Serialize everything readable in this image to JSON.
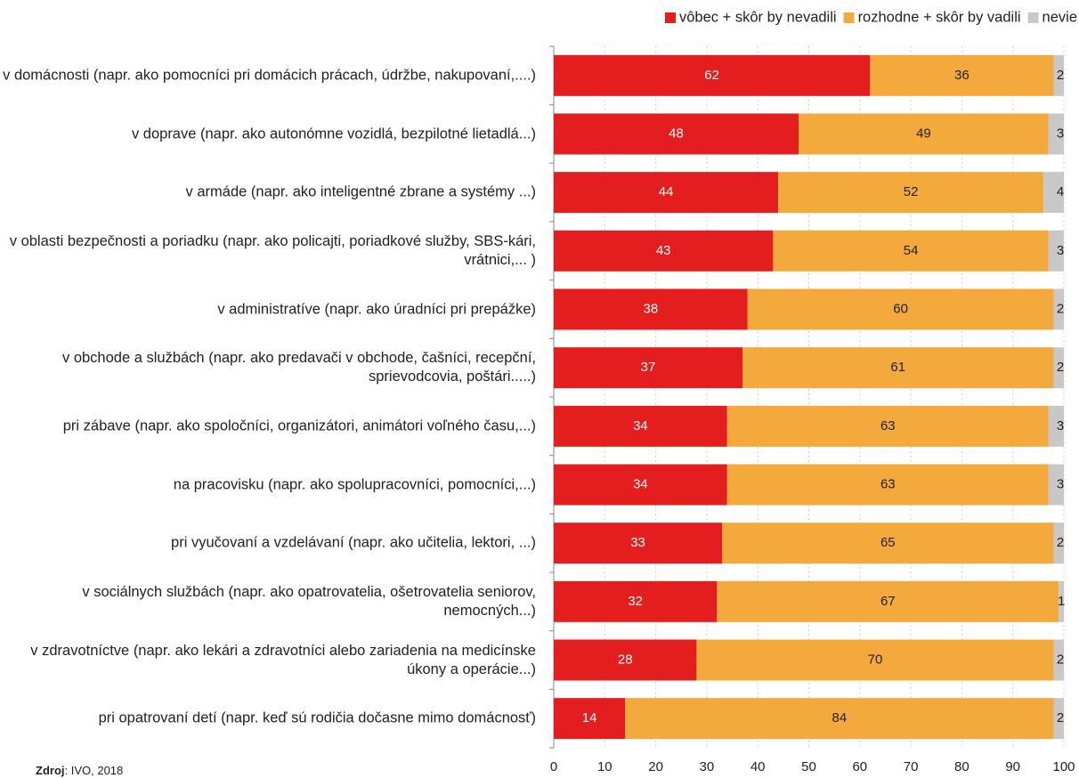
{
  "chart_data": {
    "type": "stacked_bar_horizontal",
    "categories": [
      "v domácnosti (napr. ako pomocníci pri domácich prácach, údržbe, nakupovaní,....)",
      "v doprave (napr. ako autonómne vozidlá, bezpilotné lietadlá...)",
      "v armáde (napr. ako inteligentné zbrane a systémy ...)",
      "v oblasti bezpečnosti a poriadku (napr. ako policajti, poriadkové služby, SBS-kári, vrátnici,... )",
      "v administratíve (napr. ako úradníci pri prepážke)",
      "v obchode a službách (napr. ako predavači v obchode, čašníci, recepční, sprievodcovia, poštári.....)",
      "pri zábave (napr. ako spoločníci, organizátori, animátori voľného času,...)",
      "na pracovisku (napr. ako spolupracovníci, pomocníci,...)",
      "pri vyučovaní a vzdelávaní (napr. ako učitelia, lektori, ...)",
      "v sociálnych službách (napr. ako opatrovatelia, ošetrovatelia seniorov, nemocných...)",
      "v zdravotníctve (napr. ako lekári a zdravotníci alebo zariadenia na medicínske úkony a operácie...)",
      "pri opatrovaní detí (napr. keď sú rodičia dočasne mimo domácnosť)"
    ],
    "series": [
      {
        "name": "vôbec + skôr by nevadili",
        "color": "#e41e1e",
        "values": [
          62,
          48,
          44,
          43,
          38,
          37,
          34,
          34,
          33,
          32,
          28,
          14
        ]
      },
      {
        "name": "rozhodne + skôr by vadili",
        "color": "#f4a93c",
        "values": [
          36,
          49,
          52,
          54,
          60,
          61,
          63,
          63,
          65,
          67,
          70,
          84
        ]
      },
      {
        "name": "nevie",
        "color": "#c8c8c8",
        "values": [
          2,
          3,
          4,
          3,
          2,
          2,
          3,
          3,
          2,
          1,
          2,
          2
        ]
      }
    ],
    "xlim": [
      0,
      100
    ],
    "xticks": [
      0,
      10,
      20,
      30,
      40,
      50,
      60,
      70,
      80,
      90,
      100
    ],
    "grid": true,
    "legend": "top-right",
    "source_label": "Zdroj",
    "source_text": ": IVO, 2018"
  }
}
